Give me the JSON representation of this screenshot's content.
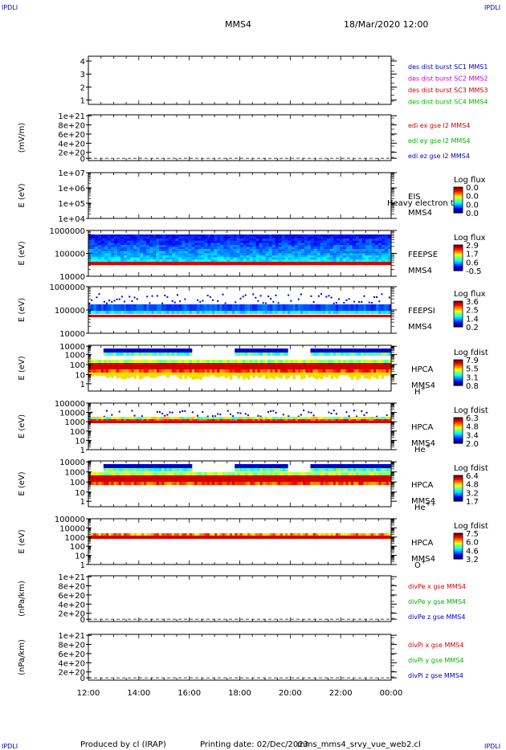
{
  "header": {
    "corner_left_top": "IPDLI",
    "corner_right_top": "IPDLI",
    "corner_left_bottom": "IPDLI",
    "corner_right_bottom": "IPDLI",
    "spacecraft": "MMS4",
    "datetime": "18/Mar/2020 12:00"
  },
  "footer": {
    "produced_by": "Produced by cl (IRAP)",
    "printing_date": "Printing date: 02/Dec/2023",
    "script": "mms_mms4_srvy_vue_web2.cl"
  },
  "colors": {
    "mms1": "#0000c8",
    "mms2": "#c800c8",
    "mms3": "#c80000",
    "mms4": "#00b400",
    "red": "#d40000",
    "green": "#00b400",
    "blue": "#0000c8"
  },
  "colorbar_title_flux": "Log flux",
  "colorbar_title_fdist": "Log fdist",
  "chart_data": [
    {
      "id": "burst",
      "type": "line",
      "ylabel": "",
      "yticks": [
        "4",
        "3",
        "2",
        "1"
      ],
      "legend": [
        {
          "text": "des dist burst SC1 MMS1",
          "color": "mms1"
        },
        {
          "text": "des dist burst SC2 MMS2",
          "color": "mms2"
        },
        {
          "text": "des dist burst SC3 MMS3",
          "color": "mms3"
        },
        {
          "text": "des dist burst SC4 MMS4",
          "color": "mms4"
        }
      ]
    },
    {
      "id": "edi",
      "type": "line",
      "ylabel": "(mV/m)",
      "yticks": [
        "1e+21",
        "8e+20",
        "6e+20",
        "4e+20",
        "2e+20",
        "0"
      ],
      "legend": [
        {
          "text": "edi ex gse l2 MMS4",
          "color": "red"
        },
        {
          "text": "edi ey gse l2 MMS4",
          "color": "green"
        },
        {
          "text": "edi ez gse l2 MMS4",
          "color": "blue"
        }
      ]
    },
    {
      "id": "eis",
      "type": "heatmap",
      "ylabel": "E (eV)",
      "yticks": [
        "1e+07",
        "1e+06",
        "1e+05",
        "1e+04"
      ],
      "label": [
        "EIS",
        "MMS4"
      ],
      "overlay_text": "Heavy electron to",
      "colorbar_title": "Log flux",
      "colorbar_ticks": [
        "0.0",
        "0.0",
        "0.0",
        "0.0"
      ]
    },
    {
      "id": "feepse",
      "type": "heatmap",
      "ylabel": "E (eV)",
      "yticks": [
        "1000000",
        "100000",
        "10000"
      ],
      "label": [
        "FEEPSE",
        "MMS4"
      ],
      "colorbar_title": "Log flux",
      "colorbar_ticks": [
        "2.9",
        "1.7",
        "0.6",
        "-0.5"
      ]
    },
    {
      "id": "feepsi",
      "type": "heatmap",
      "ylabel": "E (eV)",
      "yticks": [
        "1000000",
        "100000",
        "10000"
      ],
      "label": [
        "FEEPSI",
        "MMS4"
      ],
      "colorbar_title": "Log flux",
      "colorbar_ticks": [
        "3.6",
        "2.5",
        "1.4",
        "0.2"
      ]
    },
    {
      "id": "hpca_h",
      "type": "heatmap",
      "ylabel": "E (eV)",
      "yticks": [
        "10000",
        "1000",
        "100",
        "10",
        "1"
      ],
      "label": [
        "HPCA",
        "MMS4",
        "H+"
      ],
      "colorbar_title": "Log fdist",
      "colorbar_ticks": [
        "7.9",
        "5.5",
        "3.1",
        "0.8"
      ]
    },
    {
      "id": "hpca_he",
      "type": "heatmap",
      "ylabel": "E (eV)",
      "yticks": [
        "100000",
        "10000",
        "1000",
        "100",
        "10",
        "1"
      ],
      "label": [
        "HPCA",
        "MMS4",
        "He+"
      ],
      "colorbar_title": "Log fdist",
      "colorbar_ticks": [
        "6.3",
        "4.8",
        "3.4",
        "2.0"
      ]
    },
    {
      "id": "hpca_hepp",
      "type": "heatmap",
      "ylabel": "E (eV)",
      "yticks": [
        "10000",
        "1000",
        "100",
        "10",
        "1"
      ],
      "label": [
        "HPCA",
        "MMS4",
        "He++"
      ],
      "colorbar_title": "Log fdist",
      "colorbar_ticks": [
        "6.4",
        "4.8",
        "3.2",
        "1.7"
      ]
    },
    {
      "id": "hpca_o",
      "type": "heatmap",
      "ylabel": "E (eV)",
      "yticks": [
        "100000",
        "10000",
        "1000",
        "100",
        "10",
        "1"
      ],
      "label": [
        "HPCA",
        "MMS4",
        "O+"
      ],
      "colorbar_title": "Log fdist",
      "colorbar_ticks": [
        "7.5",
        "6.0",
        "4.6",
        "3.2"
      ]
    },
    {
      "id": "divpe",
      "type": "line",
      "ylabel": "(nPa/km)",
      "yticks": [
        "1e+21",
        "8e+20",
        "6e+20",
        "4e+20",
        "2e+20",
        "0"
      ],
      "legend": [
        {
          "text": "divPe x gse MMS4",
          "color": "red"
        },
        {
          "text": "divPe y gse MMS4",
          "color": "green"
        },
        {
          "text": "divPe z gse MMS4",
          "color": "blue"
        }
      ]
    },
    {
      "id": "divpi",
      "type": "line",
      "ylabel": "(nPa/km)",
      "yticks": [
        "1e+21",
        "8e+20",
        "6e+20",
        "4e+20",
        "2e+20",
        "0"
      ],
      "legend": [
        {
          "text": "divPi x gse MMS4",
          "color": "red"
        },
        {
          "text": "divPi y gse MMS4",
          "color": "green"
        },
        {
          "text": "divPi z gse MMS4",
          "color": "blue"
        }
      ]
    }
  ],
  "xaxis": {
    "ticks": [
      "12:00",
      "14:00",
      "16:00",
      "18:00",
      "20:00",
      "22:00",
      "00:00"
    ]
  }
}
